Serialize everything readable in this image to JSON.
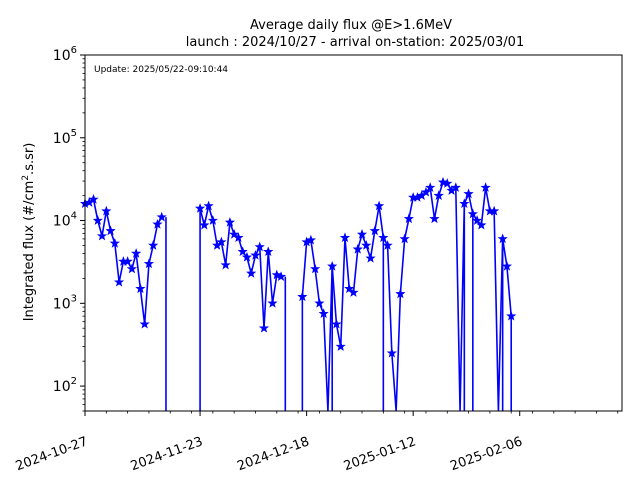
{
  "chart_data": {
    "type": "line",
    "title_line1": "Average daily flux @E>1.6MeV",
    "title_line2": "launch : 2024/10/27 - arrival on-station: 2025/03/01",
    "ylabel": "Integrated flux (#/cm$^2$.s.sr)",
    "annotation": "Update: 2025/05/22-09:10:44",
    "yscale": "log",
    "ylim": [
      50,
      1000000
    ],
    "xlim": [
      "2024-10-27",
      "2025-03-02"
    ],
    "xticks": [
      "2024-10-27",
      "2024-11-23",
      "2024-12-18",
      "2025-01-12",
      "2025-02-06"
    ],
    "yticks": [
      {
        "base": "10",
        "exp": "2"
      },
      {
        "base": "10",
        "exp": "3"
      },
      {
        "base": "10",
        "exp": "4"
      },
      {
        "base": "10",
        "exp": "5"
      },
      {
        "base": "10",
        "exp": "6"
      }
    ],
    "grid": false,
    "color": "#0000ff",
    "marker": "star",
    "series": [
      {
        "x": [
          "2024-10-27",
          "2024-10-28",
          "2024-10-29",
          "2024-10-30",
          "2024-10-31",
          "2024-11-01",
          "2024-11-02",
          "2024-11-03",
          "2024-11-04",
          "2024-11-05",
          "2024-11-06",
          "2024-11-07",
          "2024-11-08",
          "2024-11-09",
          "2024-11-10",
          "2024-11-11",
          "2024-11-12",
          "2024-11-13",
          "2024-11-14",
          "2024-11-15",
          "2024-11-16",
          "2024-11-17",
          "2024-11-18",
          "2024-11-19",
          "2024-11-20",
          "2024-11-21",
          "2024-11-22",
          "2024-11-23",
          "2024-11-24",
          "2024-11-25",
          "2024-11-26",
          "2024-11-27",
          "2024-11-28",
          "2024-11-29",
          "2024-11-30",
          "2024-12-01",
          "2024-12-02",
          "2024-12-03",
          "2024-12-04",
          "2024-12-05",
          "2024-12-06",
          "2024-12-07",
          "2024-12-08",
          "2024-12-09",
          "2024-12-10",
          "2024-12-11",
          "2024-12-12",
          "2024-12-13",
          "2024-12-14",
          "2024-12-15",
          "2024-12-16",
          "2024-12-17",
          "2024-12-18",
          "2024-12-19",
          "2024-12-20",
          "2024-12-21",
          "2024-12-22",
          "2024-12-23",
          "2024-12-24",
          "2024-12-25",
          "2024-12-26",
          "2024-12-27",
          "2024-12-28",
          "2024-12-29",
          "2024-12-30",
          "2024-12-31",
          "2025-01-01",
          "2025-01-02",
          "2025-01-03",
          "2025-01-04",
          "2025-01-05",
          "2025-01-06",
          "2025-01-07",
          "2025-01-08",
          "2025-01-09",
          "2025-01-10",
          "2025-01-11",
          "2025-01-12",
          "2025-01-13",
          "2025-01-14",
          "2025-01-15",
          "2025-01-16",
          "2025-01-17",
          "2025-01-18",
          "2025-01-19",
          "2025-01-20",
          "2025-01-21",
          "2025-01-22",
          "2025-01-23",
          "2025-01-24",
          "2025-01-25",
          "2025-01-26",
          "2025-01-27",
          "2025-01-28",
          "2025-01-29",
          "2025-01-30",
          "2025-01-31",
          "2025-02-01",
          "2025-02-02",
          "2025-02-03",
          "2025-02-04"
        ],
        "y": [
          16000,
          16500,
          18000,
          10000,
          6500,
          13000,
          7500,
          5300,
          1800,
          3200,
          3200,
          2600,
          4000,
          1500,
          560,
          3000,
          5000,
          9000,
          11000,
          null,
          null,
          null,
          null,
          null,
          null,
          null,
          null,
          14000,
          8800,
          15000,
          10000,
          5000,
          5500,
          2900,
          9500,
          6800,
          6200,
          4200,
          3600,
          2300,
          3800,
          4800,
          500,
          4200,
          1000,
          2200,
          2100,
          null,
          null,
          null,
          null,
          1200,
          5500,
          5800,
          2600,
          1000,
          750,
          50,
          2800,
          560,
          300,
          6200,
          1500,
          1350,
          4500,
          6800,
          5000,
          3500,
          7500,
          15000,
          6200,
          5000,
          250,
          50,
          1300,
          6000,
          10500,
          19000,
          19000,
          20000,
          22000,
          25000,
          10500,
          20000,
          29000,
          28000,
          23000,
          25000,
          50,
          16000,
          21000,
          12000,
          10000,
          8800,
          25000,
          13000,
          13000,
          50,
          6000,
          2800,
          700
        ],
        "drops": [
          "2024-11-15",
          "2024-11-23",
          "2024-12-13",
          "2024-12-17",
          "2024-12-24",
          "2025-01-05",
          "2025-01-24",
          "2025-01-26",
          "2025-02-02",
          "2025-02-04"
        ]
      }
    ]
  }
}
